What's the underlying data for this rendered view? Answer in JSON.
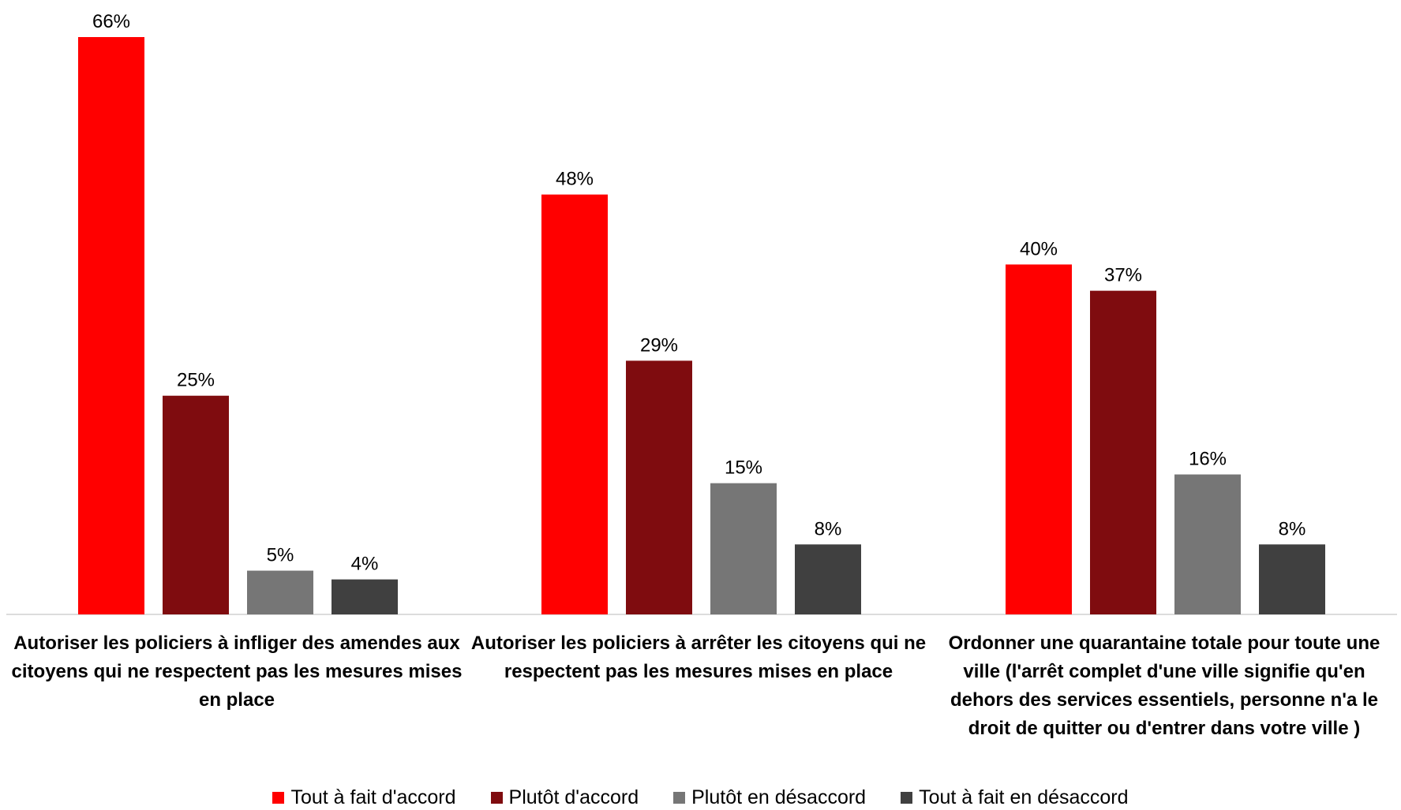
{
  "chart_data": {
    "type": "bar",
    "categories": [
      "Autoriser les policiers à infliger des amendes aux citoyens qui ne respectent pas les mesures mises en place",
      "Autoriser les policiers à arrêter les citoyens qui ne respectent pas les mesures mises en place",
      "Ordonner une quarantaine totale pour toute une ville (l'arrêt complet d'une ville signifie qu'en dehors des services essentiels, personne n'a le droit de quitter ou d'entrer dans votre ville )"
    ],
    "series": [
      {
        "name": "Tout à fait d'accord",
        "color": "#FF0000",
        "values": [
          66,
          48,
          40
        ],
        "labels": [
          "66%",
          "48%",
          "40%"
        ]
      },
      {
        "name": "Plutôt d'accord",
        "color": "#7F0C0F",
        "values": [
          25,
          29,
          37
        ],
        "labels": [
          "25%",
          "29%",
          "37%"
        ]
      },
      {
        "name": "Plutôt en désaccord",
        "color": "#767676",
        "values": [
          5,
          15,
          16
        ],
        "labels": [
          "5%",
          "15%",
          "16%"
        ]
      },
      {
        "name": "Tout à fait en désaccord",
        "color": "#404040",
        "values": [
          4,
          8,
          8
        ],
        "labels": [
          "4%",
          "8%",
          "8%"
        ]
      }
    ],
    "ylim": [
      0,
      66
    ],
    "grid": false,
    "legend_position": "bottom"
  }
}
